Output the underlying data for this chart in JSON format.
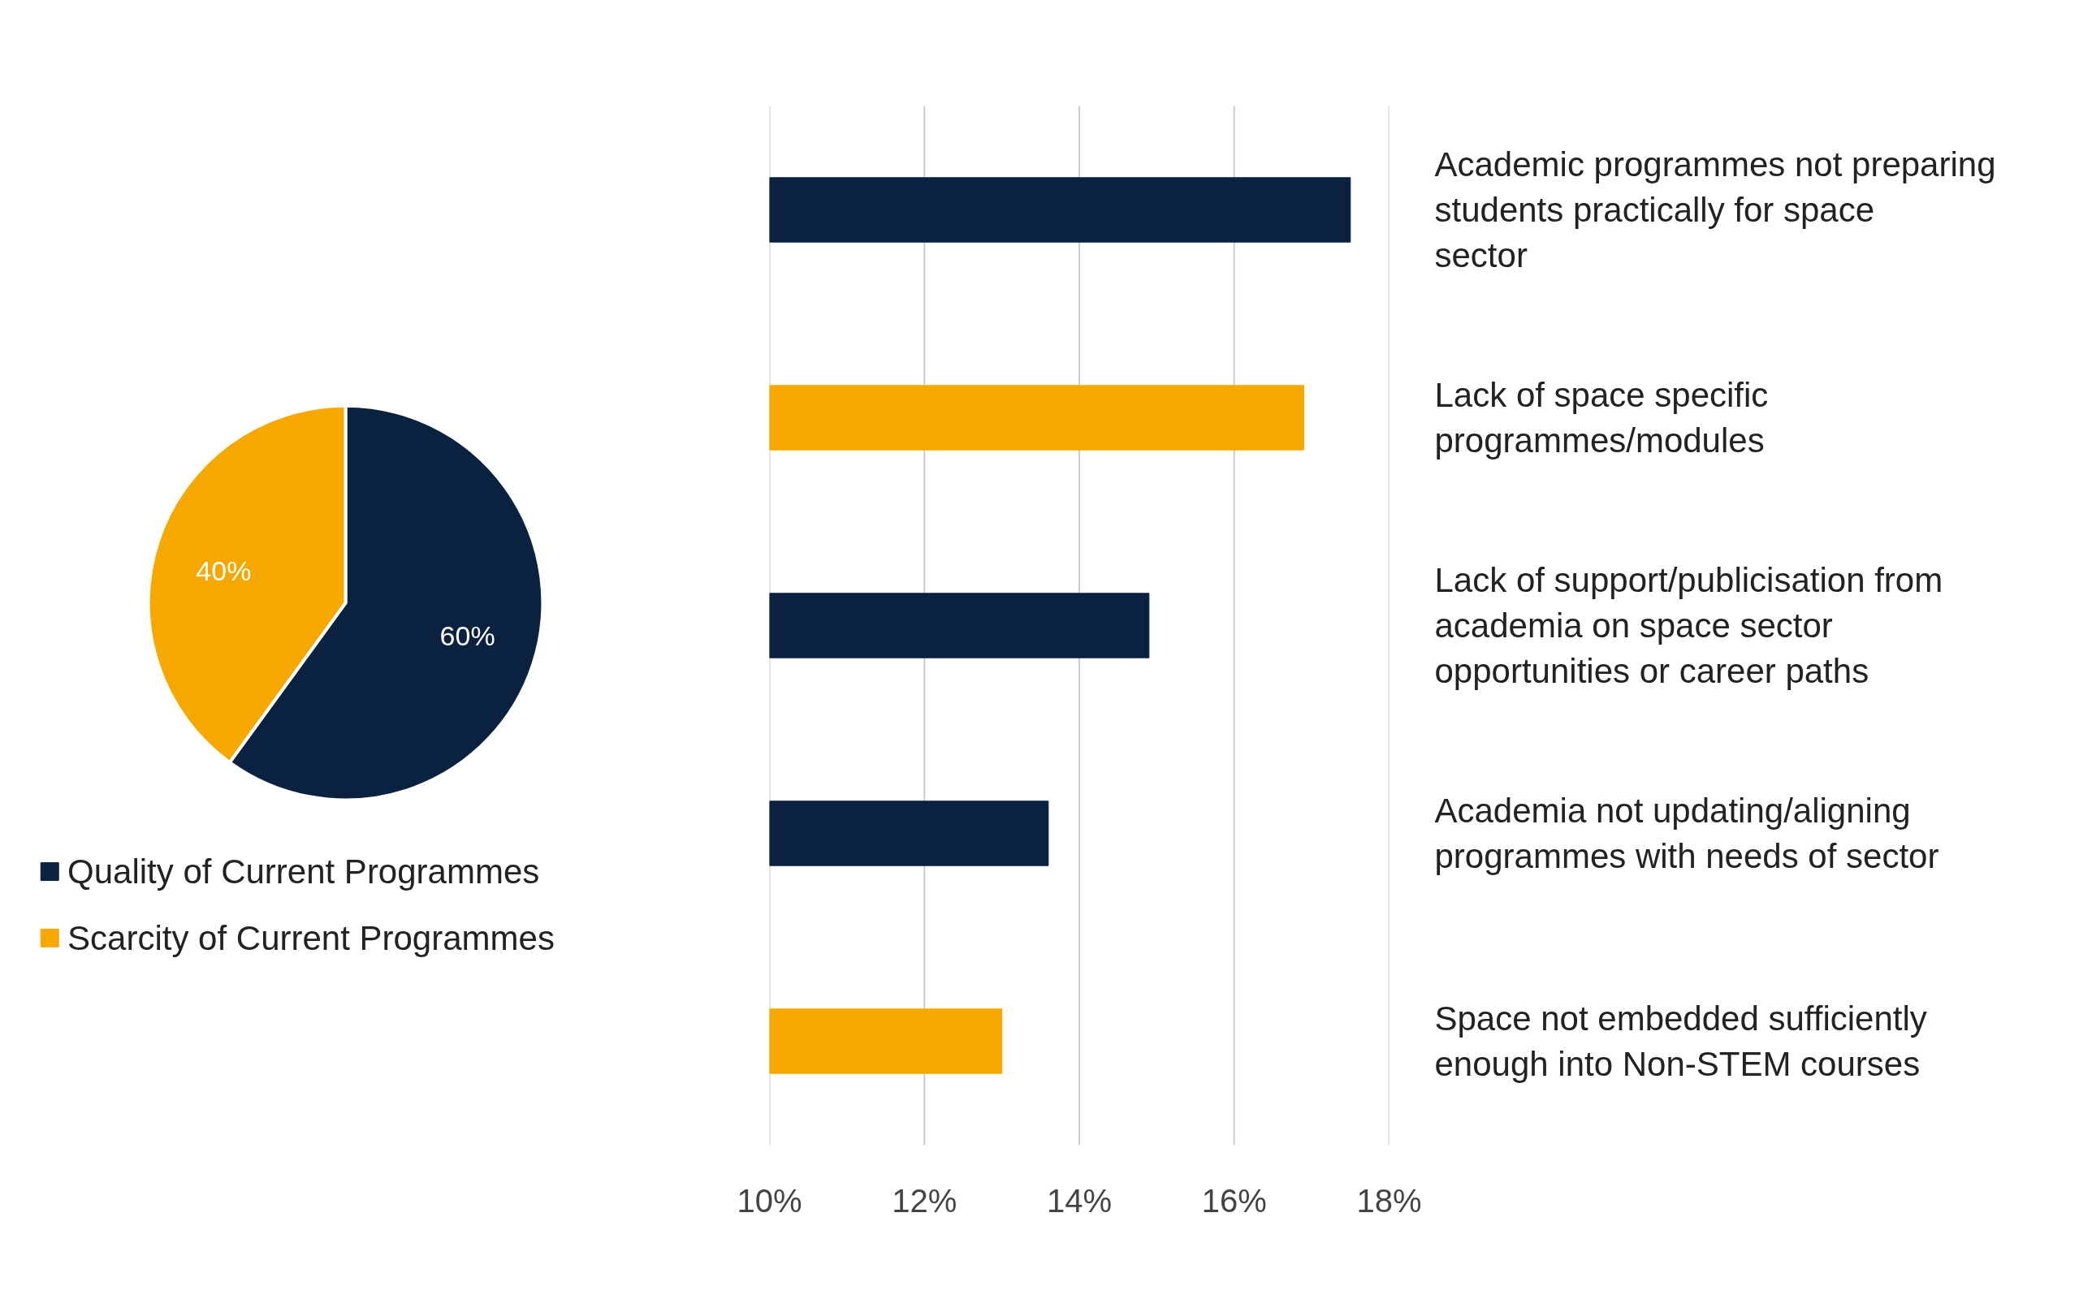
{
  "chart_data": [
    {
      "type": "pie",
      "categories": [
        "Quality of Current Programmes",
        "Scarcity of Current Programmes"
      ],
      "values": [
        60,
        40
      ],
      "colors": [
        "#0b2140",
        "#f6a800"
      ],
      "value_labels": [
        "60%",
        "40%"
      ],
      "legend": "bottom"
    },
    {
      "type": "bar",
      "orientation": "horizontal",
      "categories": [
        "Academic programmes not preparing students practically for space sector",
        "Lack of space specific programmes/modules",
        "Lack of support/publicisation from academia on space sector opportunities or career paths",
        "Academia not updating/aligning programmes with needs of sector",
        "Space not embedded sufficiently enough into Non-STEM courses"
      ],
      "values": [
        17.5,
        16.9,
        14.9,
        13.6,
        13.0
      ],
      "colors": [
        "#0b2140",
        "#f6a800",
        "#0b2140",
        "#0b2140",
        "#f6a800"
      ],
      "xlim": [
        10,
        18
      ],
      "xticks": [
        {
          "value": 10,
          "label": "10%"
        },
        {
          "value": 12,
          "label": "12%"
        },
        {
          "value": 14,
          "label": "14%"
        },
        {
          "value": 16,
          "label": "16%"
        },
        {
          "value": 18,
          "label": "18%"
        }
      ],
      "grid": "x"
    }
  ]
}
